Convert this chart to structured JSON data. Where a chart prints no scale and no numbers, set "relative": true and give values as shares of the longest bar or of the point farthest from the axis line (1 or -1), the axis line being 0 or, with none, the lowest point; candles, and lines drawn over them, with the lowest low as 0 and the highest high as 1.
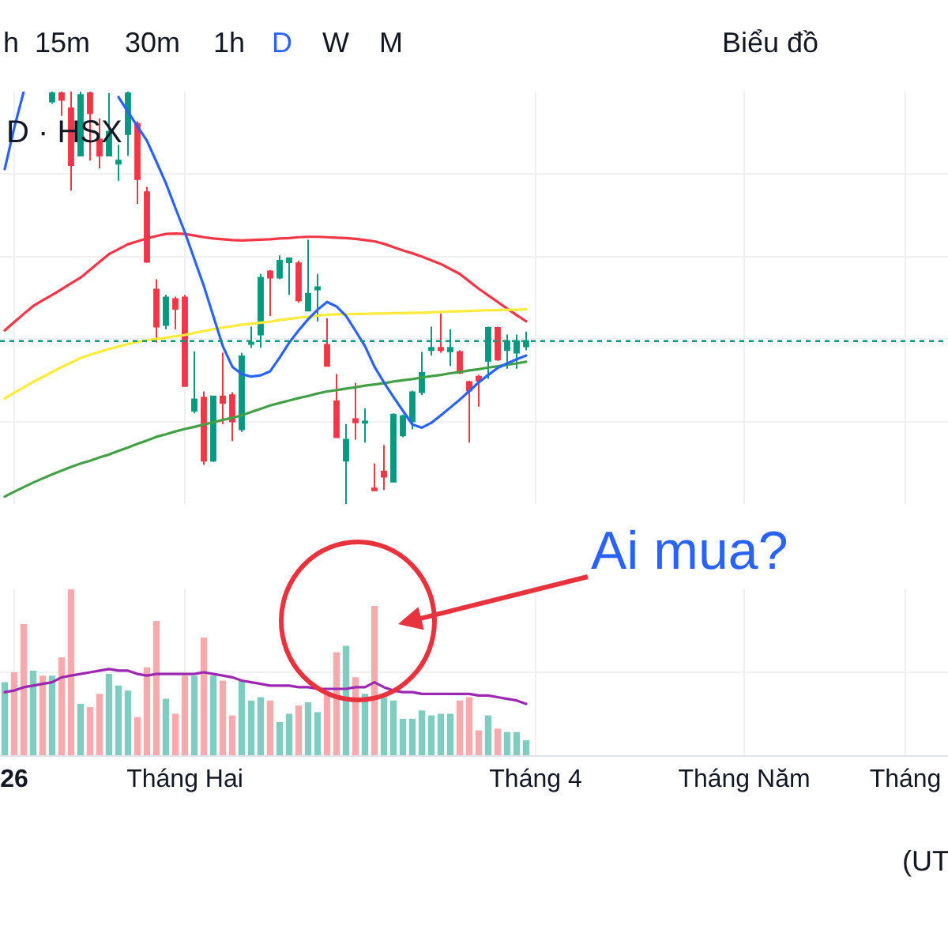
{
  "chart_data": [
    {
      "type": "candlestick",
      "title": "D · HSX",
      "relative": true,
      "grid": true,
      "categories": [
        null,
        null,
        null,
        null,
        null,
        null,
        null,
        null,
        null,
        null,
        null,
        null,
        null,
        null,
        null,
        null,
        null,
        null,
        null,
        null,
        null,
        null,
        null,
        null,
        null,
        null,
        null,
        null,
        null,
        null,
        null,
        null,
        null,
        null,
        null,
        null,
        null,
        null,
        null,
        null,
        null,
        null,
        null,
        null,
        null,
        null,
        null,
        null,
        null,
        null,
        null,
        null,
        null,
        null,
        null,
        null,
        null,
        null,
        null,
        null,
        null,
        null,
        null,
        null,
        null,
        null,
        null,
        null,
        null,
        null,
        null,
        null,
        null,
        null,
        null,
        null,
        null,
        null,
        null,
        null,
        null,
        null,
        null,
        null,
        null,
        null,
        null,
        null,
        null,
        null,
        null,
        null,
        null,
        null,
        null,
        null,
        null,
        null,
        null,
        null
      ],
      "ohlc": [
        null,
        null,
        null,
        null,
        null,
        [
          0.976,
          1.0,
          0.971,
          0.996
        ],
        [
          0.996,
          1.0,
          0.941,
          0.98
        ],
        [
          0.96,
          1.0,
          0.76,
          0.822
        ],
        [
          0.845,
          1.0,
          0.843,
          0.992
        ],
        [
          0.996,
          1.0,
          0.833,
          0.948
        ],
        [
          0.884,
          0.935,
          0.814,
          0.845
        ],
        [
          0.845,
          0.996,
          0.843,
          0.903
        ],
        [
          0.825,
          0.871,
          0.784,
          0.833
        ],
        [
          0.897,
          1.0,
          0.845,
          0.996
        ],
        [
          0.922,
          0.928,
          0.728,
          0.788
        ],
        [
          0.756,
          0.769,
          0.585,
          0.587
        ],
        [
          0.52,
          0.545,
          0.392,
          0.43
        ],
        [
          0.434,
          0.507,
          0.424,
          0.501
        ],
        [
          0.497,
          0.503,
          0.424,
          0.473
        ],
        [
          0.501,
          0.507,
          0.284,
          0.286
        ],
        [
          0.226,
          0.37,
          0.22,
          0.254
        ],
        [
          0.258,
          0.273,
          0.095,
          0.105
        ],
        [
          0.105,
          0.263,
          0.102,
          0.261
        ],
        [
          0.261,
          0.367,
          0.194,
          0.245
        ],
        [
          0.264,
          0.271,
          0.153,
          0.2
        ],
        [
          0.181,
          0.367,
          0.175,
          0.358
        ],
        [
          0.388,
          0.43,
          0.379,
          0.392
        ],
        [
          0.411,
          0.558,
          0.379,
          0.549
        ],
        [
          0.564,
          0.567,
          0.456,
          0.549
        ],
        [
          0.549,
          0.603,
          0.545,
          0.59
        ],
        [
          0.586,
          0.596,
          0.507,
          0.596
        ],
        [
          0.584,
          0.59,
          0.488,
          0.494
        ],
        [
          0.469,
          0.641,
          0.467,
          0.51
        ],
        [
          0.52,
          0.558,
          0.443,
          0.526
        ],
        [
          0.386,
          0.45,
          0.333,
          0.335
        ],
        [
          0.249,
          0.315,
          0.16,
          0.162
        ],
        [
          0.105,
          0.194,
          0.0,
          0.156
        ],
        [
          0.206,
          0.294,
          0.156,
          0.198
        ],
        [
          0.197,
          0.232,
          0.149,
          0.2
        ],
        [
          0.038,
          0.098,
          0.033,
          0.033
        ],
        [
          0.079,
          0.143,
          0.034,
          0.066
        ],
        [
          0.054,
          0.22,
          0.052,
          0.217
        ],
        [
          0.166,
          0.217,
          0.162,
          0.213
        ],
        [
          0.2,
          0.275,
          0.181,
          0.271
        ],
        [
          0.271,
          0.369,
          0.264,
          0.318
        ],
        [
          0.373,
          0.43,
          0.36,
          0.379
        ],
        [
          0.379,
          0.462,
          0.367,
          0.373
        ],
        [
          0.37,
          0.424,
          0.335,
          0.379
        ],
        [
          0.369,
          0.373,
          0.315,
          0.318
        ],
        [
          0.296,
          0.299,
          0.149,
          0.275
        ],
        [
          0.309,
          0.313,
          0.236,
          0.299
        ],
        [
          0.347,
          0.43,
          0.303,
          0.427
        ],
        [
          0.427,
          0.43,
          0.347,
          0.35
        ],
        [
          0.373,
          0.411,
          0.328,
          0.395
        ],
        [
          0.367,
          0.411,
          0.328,
          0.395
        ],
        [
          0.382,
          0.418,
          0.373,
          0.395
        ],
        null,
        null,
        null,
        null,
        null,
        null,
        null,
        null,
        null,
        null,
        null,
        null,
        null,
        null,
        null,
        null,
        null,
        null,
        null,
        null,
        null,
        null,
        null,
        null,
        null,
        null,
        null,
        null,
        null,
        null,
        null,
        null,
        null,
        null,
        null,
        null,
        null,
        null,
        null,
        null,
        null,
        null,
        null,
        null
      ],
      "colors": [
        null,
        null,
        null,
        null,
        null,
        "#089981",
        "#f23645",
        "#f23645",
        "#089981",
        "#f23645",
        "#f23645",
        "#089981",
        "#089981",
        "#089981",
        "#f23645",
        "#f23645",
        "#f23645",
        "#089981",
        "#f23645",
        "#f23645",
        "#089981",
        "#f23645",
        "#089981",
        "#f23645",
        "#f23645",
        "#089981",
        "#089981",
        "#089981",
        "#f23645",
        "#089981",
        "#089981",
        "#f23645",
        "#089981",
        "#089981",
        "#f23645",
        "#f23645",
        "#089981",
        "#f23645",
        "#089981",
        "#f23645",
        "#f23645",
        "#089981",
        "#089981",
        "#089981",
        "#089981",
        "#089981",
        "#f23645",
        "#089981",
        "#f23645",
        "#f23645",
        "#f23645",
        "#089981",
        "#f23645",
        "#089981",
        "#089981",
        "#089981",
        null,
        null,
        null,
        null,
        null,
        null,
        null,
        null,
        null,
        null,
        null,
        null,
        null,
        null,
        null,
        null,
        null,
        null,
        null,
        null,
        null,
        null,
        null,
        null,
        null,
        null,
        null,
        null,
        null,
        null,
        null,
        null,
        null,
        null,
        null,
        null,
        null,
        null,
        null,
        null,
        null,
        null,
        null,
        null
      ],
      "series": [
        {
          "type": "line",
          "color": "#f23645",
          "values": [
            0.421,
            0.441,
            0.461,
            0.48,
            0.494,
            0.507,
            0.521,
            0.535,
            0.549,
            0.568,
            0.587,
            0.606,
            0.618,
            0.63,
            0.637,
            0.644,
            0.65,
            0.655,
            0.656,
            0.655,
            0.651,
            0.647,
            0.644,
            0.642,
            0.64,
            0.639,
            0.64,
            0.641,
            0.642,
            0.644,
            0.645,
            0.647,
            0.648,
            0.648,
            0.647,
            0.646,
            0.645,
            0.643,
            0.64,
            0.637,
            0.631,
            0.623,
            0.615,
            0.608,
            0.6,
            0.591,
            0.582,
            0.57,
            0.558,
            0.54,
            0.522,
            0.506,
            0.49,
            0.474,
            0.458,
            0.443,
            null,
            null,
            null,
            null,
            null,
            null,
            null,
            null,
            null,
            null,
            null,
            null,
            null,
            null,
            null,
            null,
            null,
            null,
            null,
            null,
            null,
            null,
            null,
            null,
            null,
            null,
            null,
            null,
            null,
            null,
            null,
            null,
            null,
            null,
            null,
            null,
            null,
            null,
            null,
            null,
            null,
            null,
            null,
            null
          ]
        },
        {
          "type": "line",
          "color": "#ffeb3b",
          "values": [
            0.256,
            0.27,
            0.283,
            0.296,
            0.308,
            0.32,
            0.332,
            0.343,
            0.354,
            0.362,
            0.369,
            0.376,
            0.382,
            0.388,
            0.394,
            0.397,
            0.4,
            0.403,
            0.407,
            0.41,
            0.415,
            0.419,
            0.424,
            0.428,
            0.431,
            0.435,
            0.437,
            0.44,
            0.442,
            0.446,
            0.449,
            0.452,
            0.454,
            0.457,
            0.459,
            0.46,
            0.46,
            0.461,
            0.461,
            0.462,
            0.462,
            0.463,
            0.463,
            0.464,
            0.464,
            0.465,
            0.466,
            0.467,
            0.467,
            0.468,
            0.469,
            0.47,
            0.47,
            0.471,
            0.471,
            0.472,
            null,
            null,
            null,
            null,
            null,
            null,
            null,
            null,
            null,
            null,
            null,
            null,
            null,
            null,
            null,
            null,
            null,
            null,
            null,
            null,
            null,
            null,
            null,
            null,
            null,
            null,
            null,
            null,
            null,
            null,
            null,
            null,
            null,
            null,
            null,
            null,
            null,
            null,
            null,
            null,
            null,
            null,
            null,
            null
          ]
        },
        {
          "type": "line",
          "color": "#43a047",
          "values": [
            0.018,
            0.03,
            0.041,
            0.052,
            0.062,
            0.072,
            0.081,
            0.09,
            0.098,
            0.105,
            0.113,
            0.12,
            0.129,
            0.137,
            0.146,
            0.154,
            0.163,
            0.169,
            0.176,
            0.182,
            0.187,
            0.193,
            0.198,
            0.204,
            0.209,
            0.215,
            0.223,
            0.231,
            0.239,
            0.245,
            0.251,
            0.257,
            0.262,
            0.268,
            0.273,
            0.276,
            0.28,
            0.283,
            0.287,
            0.29,
            0.293,
            0.297,
            0.3,
            0.303,
            0.307,
            0.31,
            0.313,
            0.317,
            0.32,
            0.324,
            0.327,
            0.331,
            0.334,
            0.338,
            0.341,
            0.345,
            null,
            null,
            null,
            null,
            null,
            null,
            null,
            null,
            null,
            null,
            null,
            null,
            null,
            null,
            null,
            null,
            null,
            null,
            null,
            null,
            null,
            null,
            null,
            null,
            null,
            null,
            null,
            null,
            null,
            null,
            null,
            null,
            null,
            null,
            null,
            null,
            null,
            null,
            null,
            null,
            null,
            null,
            null,
            null
          ]
        },
        {
          "type": "line",
          "color": "#2962ff",
          "values": [
            0.812,
            0.912,
            1.0,
            null,
            null,
            null,
            null,
            null,
            null,
            null,
            null,
            null,
            0.987,
            0.951,
            0.916,
            0.881,
            0.83,
            0.778,
            0.718,
            0.659,
            0.594,
            0.529,
            0.456,
            0.383,
            0.333,
            0.315,
            0.309,
            0.312,
            0.322,
            0.355,
            0.391,
            0.421,
            0.448,
            0.471,
            0.49,
            0.479,
            0.456,
            0.42,
            0.383,
            0.333,
            0.295,
            0.26,
            0.226,
            0.193,
            0.185,
            0.197,
            0.215,
            0.234,
            0.253,
            0.274,
            0.295,
            0.313,
            0.33,
            0.341,
            0.351,
            0.36,
            null,
            null,
            null,
            null,
            null,
            null,
            null,
            null,
            null,
            null,
            null,
            null,
            null,
            null,
            null,
            null,
            null,
            null,
            null,
            null,
            null,
            null,
            null,
            null,
            null,
            null,
            null,
            null,
            null,
            null,
            null,
            null,
            null,
            null,
            null,
            null,
            null,
            null,
            null,
            null,
            null,
            null,
            null,
            null
          ]
        }
      ],
      "ref_lines": [
        {
          "axis": "y",
          "value": 0.395,
          "color": "#089981",
          "line_style": "dotted"
        }
      ],
      "annotations": [
        "h",
        "15m",
        "30m",
        "1h",
        "D",
        "W",
        "M",
        "Biểu đồ"
      ]
    },
    {
      "type": "bar",
      "relative": true,
      "grid": true,
      "tick_labels": "x",
      "categories": [
        null,
        "26",
        null,
        null,
        null,
        null,
        null,
        null,
        null,
        null,
        null,
        null,
        null,
        null,
        null,
        null,
        null,
        null,
        null,
        "Tháng Hai",
        null,
        null,
        null,
        null,
        null,
        null,
        null,
        null,
        null,
        null,
        null,
        null,
        null,
        null,
        null,
        null,
        null,
        null,
        null,
        null,
        null,
        null,
        null,
        null,
        null,
        null,
        null,
        null,
        null,
        null,
        null,
        null,
        null,
        null,
        null,
        null,
        "Tháng 4",
        null,
        null,
        null,
        null,
        null,
        null,
        null,
        null,
        null,
        null,
        null,
        null,
        null,
        null,
        null,
        null,
        null,
        null,
        null,
        null,
        null,
        "Tháng Năm",
        null,
        null,
        null,
        null,
        null,
        null,
        null,
        null,
        null,
        null,
        null,
        null,
        null,
        null,
        null,
        null,
        "Tháng",
        null,
        null,
        null,
        null
      ],
      "series": [
        {
          "type": "bar",
          "values": [
            0.44,
            0.5,
            0.79,
            0.51,
            0.48,
            0.48,
            0.59,
            1.0,
            0.31,
            0.29,
            0.37,
            0.49,
            0.42,
            0.39,
            0.23,
            0.53,
            0.81,
            0.34,
            0.25,
            0.48,
            0.48,
            0.71,
            0.48,
            0.45,
            0.24,
            0.45,
            0.33,
            0.35,
            0.33,
            0.2,
            0.25,
            0.3,
            0.32,
            0.26,
            0.37,
            0.62,
            0.66,
            0.47,
            0.37,
            0.9,
            0.35,
            0.33,
            0.22,
            0.22,
            0.27,
            0.24,
            0.25,
            0.25,
            0.33,
            0.35,
            0.15,
            0.24,
            0.16,
            0.14,
            0.14,
            0.09,
            null,
            null,
            null,
            null,
            null,
            null,
            null,
            null,
            null,
            null,
            null,
            null,
            null,
            null,
            null,
            null,
            null,
            null,
            null,
            null,
            null,
            null,
            null,
            null,
            null,
            null,
            null,
            null,
            null,
            null,
            null,
            null,
            null,
            null,
            null,
            null,
            null,
            null,
            null,
            null,
            null,
            null,
            null,
            null
          ],
          "colors": [
            "#7fccc1",
            "#f7a9ad",
            "#f7a9ad",
            "#7fccc1",
            "#f7a9ad",
            "#7fccc1",
            "#f7a9ad",
            "#f7a9ad",
            "#7fccc1",
            "#f7a9ad",
            "#f7a9ad",
            "#7fccc1",
            "#7fccc1",
            "#7fccc1",
            "#f7a9ad",
            "#f7a9ad",
            "#f7a9ad",
            "#7fccc1",
            "#f7a9ad",
            "#f7a9ad",
            "#7fccc1",
            "#f7a9ad",
            "#7fccc1",
            "#f7a9ad",
            "#f7a9ad",
            "#7fccc1",
            "#7fccc1",
            "#7fccc1",
            "#f7a9ad",
            "#7fccc1",
            "#7fccc1",
            "#f7a9ad",
            "#7fccc1",
            "#7fccc1",
            "#f7a9ad",
            "#f7a9ad",
            "#7fccc1",
            "#f7a9ad",
            "#7fccc1",
            "#f7a9ad",
            "#7fccc1",
            "#7fccc1",
            "#7fccc1",
            "#7fccc1",
            "#7fccc1",
            "#7fccc1",
            "#7fccc1",
            "#7fccc1",
            "#f7a9ad",
            "#f7a9ad",
            "#f7a9ad",
            "#7fccc1",
            "#f7a9ad",
            "#7fccc1",
            "#7fccc1",
            "#7fccc1",
            null,
            null,
            null,
            null,
            null,
            null,
            null,
            null,
            null,
            null,
            null,
            null,
            null,
            null,
            null,
            null,
            null,
            null,
            null,
            null,
            null,
            null,
            null,
            null,
            null,
            null,
            null,
            null,
            null,
            null,
            null,
            null,
            null,
            null,
            null,
            null,
            null,
            null,
            null,
            null,
            null,
            null,
            null,
            null
          ]
        },
        {
          "type": "line",
          "color": "#9c27b0",
          "values": [
            0.38,
            0.39,
            0.41,
            0.42,
            0.43,
            0.44,
            0.47,
            0.48,
            0.49,
            0.5,
            0.51,
            0.52,
            0.51,
            0.51,
            0.49,
            0.48,
            0.49,
            0.49,
            0.49,
            0.49,
            0.49,
            0.5,
            0.49,
            0.48,
            0.47,
            0.45,
            0.44,
            0.43,
            0.42,
            0.42,
            0.42,
            0.41,
            0.41,
            0.4,
            0.4,
            0.4,
            0.4,
            0.41,
            0.41,
            0.44,
            0.41,
            0.39,
            0.38,
            0.38,
            0.37,
            0.37,
            0.37,
            0.37,
            0.37,
            0.37,
            0.36,
            0.36,
            0.35,
            0.34,
            0.33,
            0.31,
            null,
            null,
            null,
            null,
            null,
            null,
            null,
            null,
            null,
            null,
            null,
            null,
            null,
            null,
            null,
            null,
            null,
            null,
            null,
            null,
            null,
            null,
            null,
            null,
            null,
            null,
            null,
            null,
            null,
            null,
            null,
            null,
            null,
            null,
            null,
            null,
            null,
            null,
            null,
            null,
            null,
            null,
            null,
            null
          ]
        }
      ],
      "annotations": [
        "(UT",
        "Ai mua?"
      ]
    }
  ]
}
